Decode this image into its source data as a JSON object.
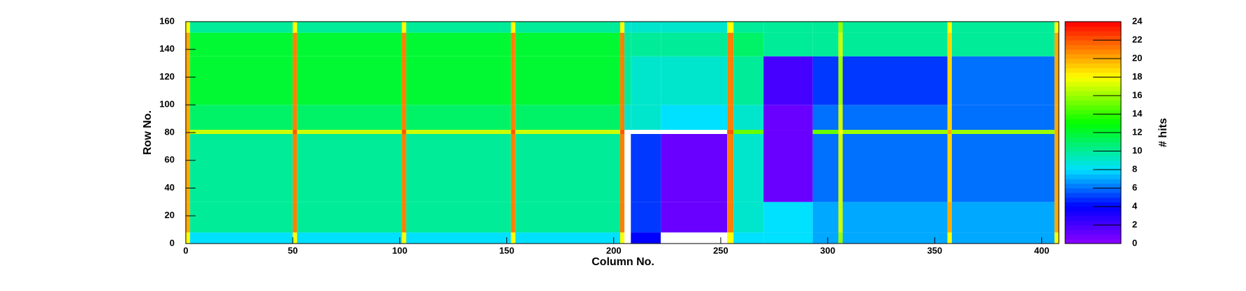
{
  "chart_data": {
    "type": "heatmap",
    "x_label": "Column No.",
    "y_label": "Row No.",
    "z_label": "# hits",
    "xlim": [
      0,
      408
    ],
    "ylim": [
      0,
      160
    ],
    "zlim": [
      0,
      24
    ],
    "xticks": [
      0,
      50,
      100,
      150,
      200,
      250,
      300,
      350,
      400
    ],
    "yticks": [
      0,
      20,
      40,
      60,
      80,
      100,
      120,
      140,
      160
    ],
    "zticks": [
      0,
      2,
      4,
      6,
      8,
      10,
      12,
      14,
      16,
      18,
      20,
      22,
      24
    ],
    "xbins": [
      0,
      2,
      50,
      52,
      101,
      103,
      152,
      154,
      203,
      205,
      208,
      222,
      253,
      256,
      270,
      293,
      305,
      307,
      356,
      358,
      406,
      408
    ],
    "ybins": [
      0,
      8,
      30,
      79,
      82,
      100,
      135,
      152,
      160
    ],
    "z": [
      [
        18,
        8,
        18,
        8,
        18,
        8,
        18,
        8,
        18,
        0,
        4,
        0,
        18,
        8,
        8,
        7,
        16,
        7,
        18,
        7,
        18
      ],
      [
        20,
        10,
        21,
        10,
        21,
        10,
        21,
        10,
        21,
        0,
        5,
        1,
        21,
        9,
        8,
        7,
        17,
        7,
        20,
        7,
        20
      ],
      [
        20,
        10,
        21,
        10,
        21,
        10,
        21,
        10,
        21,
        0,
        5,
        1,
        21,
        9,
        1,
        6,
        17,
        6,
        19,
        6,
        20
      ],
      [
        20,
        17,
        22,
        17,
        22,
        17,
        22,
        17,
        22,
        0,
        0,
        0,
        22,
        15,
        1,
        15,
        18,
        16,
        20,
        16,
        20
      ],
      [
        20,
        11,
        21,
        11,
        21,
        11,
        21,
        11,
        21,
        9,
        9,
        8,
        21,
        9,
        1,
        6,
        17,
        6,
        19,
        6,
        20
      ],
      [
        20,
        12,
        21,
        12,
        21,
        12,
        21,
        12,
        21,
        10,
        9,
        9,
        21,
        10,
        2,
        5,
        16,
        5,
        19,
        6,
        20
      ],
      [
        20,
        12,
        21,
        12,
        21,
        12,
        21,
        12,
        21,
        10,
        10,
        10,
        21,
        11,
        10,
        10,
        17,
        10,
        19,
        10,
        20
      ],
      [
        18,
        10,
        18,
        10,
        18,
        10,
        18,
        10,
        18,
        9,
        9,
        9,
        18,
        10,
        10,
        10,
        16,
        10,
        18,
        10,
        18
      ]
    ],
    "colorscale": [
      [
        0,
        "#8c00ff"
      ],
      [
        4,
        "#0000ff"
      ],
      [
        8,
        "#00e0ff"
      ],
      [
        13,
        "#00ff00"
      ],
      [
        18,
        "#ffff00"
      ],
      [
        21,
        "#ff8000"
      ],
      [
        24,
        "#ff0000"
      ]
    ]
  }
}
